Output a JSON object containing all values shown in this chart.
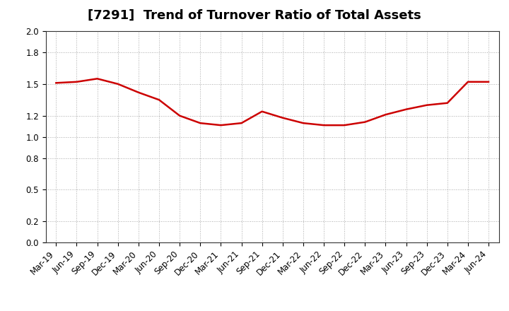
{
  "title": "[7291]  Trend of Turnover Ratio of Total Assets",
  "x_labels": [
    "Mar-19",
    "Jun-19",
    "Sep-19",
    "Dec-19",
    "Mar-20",
    "Jun-20",
    "Sep-20",
    "Dec-20",
    "Mar-21",
    "Jun-21",
    "Sep-21",
    "Dec-21",
    "Mar-22",
    "Jun-22",
    "Sep-22",
    "Dec-22",
    "Mar-23",
    "Jun-23",
    "Sep-23",
    "Dec-23",
    "Mar-24",
    "Jun-24"
  ],
  "y_values": [
    1.51,
    1.52,
    1.55,
    1.5,
    1.42,
    1.35,
    1.2,
    1.13,
    1.11,
    1.13,
    1.24,
    1.18,
    1.13,
    1.11,
    1.11,
    1.14,
    1.21,
    1.26,
    1.3,
    1.32,
    1.52,
    1.52
  ],
  "line_color": "#cc0000",
  "line_width": 1.8,
  "ylim": [
    0.0,
    2.0
  ],
  "yticks": [
    0.0,
    0.2,
    0.5,
    0.8,
    1.0,
    1.2,
    1.5,
    1.8,
    2.0
  ],
  "grid_color": "#aaaaaa",
  "bg_color": "#ffffff",
  "title_fontsize": 13,
  "tick_fontsize": 8.5
}
